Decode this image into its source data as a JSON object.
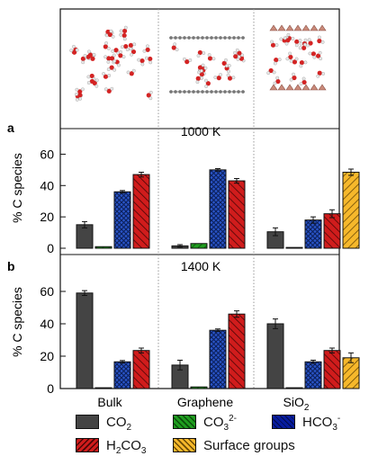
{
  "figure": {
    "panel_labels": [
      "a",
      "b"
    ]
  },
  "colors": {
    "CO2": "#444444",
    "CO3": "#1f9d1f",
    "HCO3": "#2a55c9",
    "H2CO3": "#d01c1c",
    "Surface groups": "#f6b82b"
  },
  "legend": {
    "co2": {
      "main": "CO",
      "sub": "2"
    },
    "co3": {
      "main": "CO",
      "sub": "3",
      "sup": "2-"
    },
    "hco3": {
      "main": "HCO",
      "sub": "3",
      "sup": "-"
    },
    "h2co3": {
      "main": "H",
      "sub": "2",
      "rest": "CO",
      "sub2": "3"
    },
    "surface": {
      "main": "Surface groups"
    }
  },
  "chart_data": [
    {
      "type": "bar",
      "panel": "a",
      "annotation": "1000 K",
      "ylabel": "% C species",
      "ylim": [
        0,
        70
      ],
      "yticks": [
        0,
        20,
        40,
        60
      ],
      "categories": [
        "Bulk",
        "Graphene",
        "SiO2"
      ],
      "series": [
        {
          "name": "CO2",
          "values": [
            15,
            1.5,
            10.5
          ],
          "errors": [
            2,
            0.8,
            2.5
          ]
        },
        {
          "name": "CO3 2-",
          "values": [
            1,
            3,
            0.5
          ],
          "errors": [
            0,
            0,
            0
          ]
        },
        {
          "name": "HCO3 -",
          "values": [
            36,
            50,
            18
          ],
          "errors": [
            0.8,
            0.8,
            2
          ]
        },
        {
          "name": "H2CO3",
          "values": [
            47,
            43,
            22
          ],
          "errors": [
            1.5,
            1.5,
            2.5
          ]
        },
        {
          "name": "Surface groups",
          "values": [
            null,
            null,
            48.5
          ],
          "errors": [
            0,
            0,
            2
          ]
        }
      ]
    },
    {
      "type": "bar",
      "panel": "b",
      "annotation": "1400 K",
      "ylabel": "% C species",
      "ylim": [
        0,
        70
      ],
      "yticks": [
        0,
        20,
        40,
        60
      ],
      "categories": [
        "Bulk",
        "Graphene",
        "SiO2"
      ],
      "series": [
        {
          "name": "CO2",
          "values": [
            59,
            14.5,
            40
          ],
          "errors": [
            1.5,
            3,
            3
          ]
        },
        {
          "name": "CO3 2-",
          "values": [
            0.5,
            1,
            0.5
          ],
          "errors": [
            0,
            0,
            0
          ]
        },
        {
          "name": "HCO3 -",
          "values": [
            16.5,
            36,
            16.5
          ],
          "errors": [
            0.8,
            0.8,
            1
          ]
        },
        {
          "name": "H2CO3",
          "values": [
            23.5,
            46,
            23.5
          ],
          "errors": [
            1.5,
            2,
            1.5
          ]
        },
        {
          "name": "Surface groups",
          "values": [
            null,
            null,
            19
          ],
          "errors": [
            0,
            0,
            3
          ]
        }
      ]
    }
  ],
  "xlabels": {
    "bulk": "Bulk",
    "graphene": "Graphene",
    "sio2": {
      "main": "SiO",
      "sub": "2"
    }
  }
}
